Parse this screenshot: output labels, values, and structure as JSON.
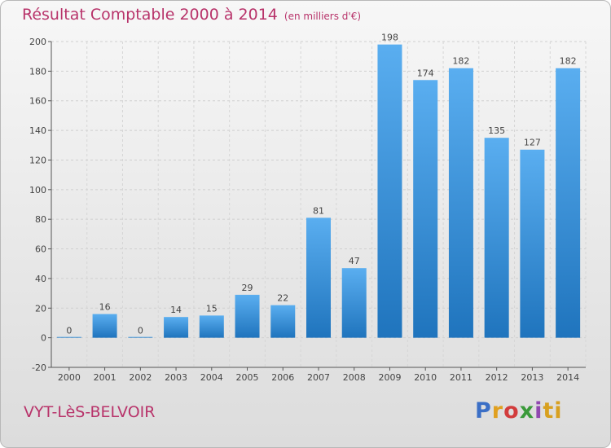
{
  "title": "Résultat Comptable 2000 à 2014",
  "subtitle": "(en milliers d'€)",
  "commune": "VYT-LèS-BELVOIR",
  "logo": {
    "text": "Proxiti",
    "letters": [
      "P",
      "r",
      "o",
      "x",
      "i",
      "ti"
    ]
  },
  "colors": {
    "title": "#b8336a",
    "bar_light": "#5aaef0",
    "bar_dark": "#1f74bd"
  },
  "chart_data": {
    "type": "bar",
    "categories": [
      "2000",
      "2001",
      "2002",
      "2003",
      "2004",
      "2005",
      "2006",
      "2007",
      "2008",
      "2009",
      "2010",
      "2011",
      "2012",
      "2013",
      "2014"
    ],
    "values": [
      0,
      16,
      0,
      14,
      15,
      29,
      22,
      81,
      47,
      198,
      174,
      182,
      135,
      127,
      182
    ],
    "ylim": [
      -20,
      200
    ],
    "yticks": [
      -20,
      0,
      20,
      40,
      60,
      80,
      100,
      120,
      140,
      160,
      180,
      200
    ],
    "grid": true,
    "title": "Résultat Comptable 2000 à 2014",
    "subtitle": "(en milliers d'€)",
    "xlabel": "",
    "ylabel": ""
  }
}
